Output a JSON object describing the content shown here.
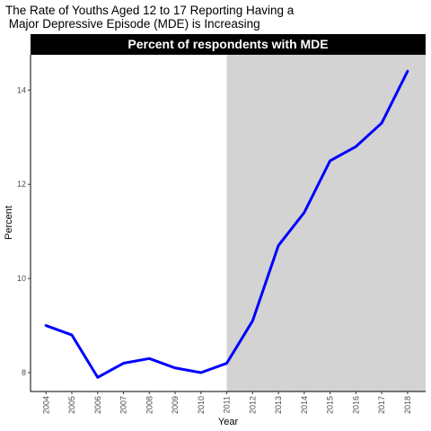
{
  "title_lines": [
    "The Rate of Youths Aged 12 to 17 Reporting Having a",
    " Major Depressive Episode (MDE) is Increasing"
  ],
  "chart_data": {
    "type": "line",
    "title": "The Rate of Youths Aged 12 to 17 Reporting Having a Major Depressive Episode (MDE) is Increasing",
    "facet_label": "Percent of respondents with MDE",
    "xlabel": "Year",
    "ylabel": "Percent",
    "x": [
      2004,
      2005,
      2006,
      2007,
      2008,
      2009,
      2010,
      2011,
      2012,
      2013,
      2014,
      2015,
      2016,
      2017,
      2018
    ],
    "series": [
      {
        "values": [
          9.0,
          8.8,
          7.9,
          8.2,
          8.3,
          8.1,
          8.0,
          8.2,
          9.1,
          10.7,
          11.4,
          12.5,
          12.8,
          13.3,
          14.4
        ]
      }
    ],
    "xlim": [
      2003.4,
      2018.7
    ],
    "ylim": [
      7.6,
      14.75
    ],
    "y_ticks": [
      8,
      10,
      12,
      14
    ],
    "shaded_region": {
      "from": 2011,
      "to": 2018.7,
      "color": "#d3d3d3"
    },
    "line_color": "#0000ff",
    "strip_color": "#000000",
    "grid": false,
    "legend": "none"
  }
}
